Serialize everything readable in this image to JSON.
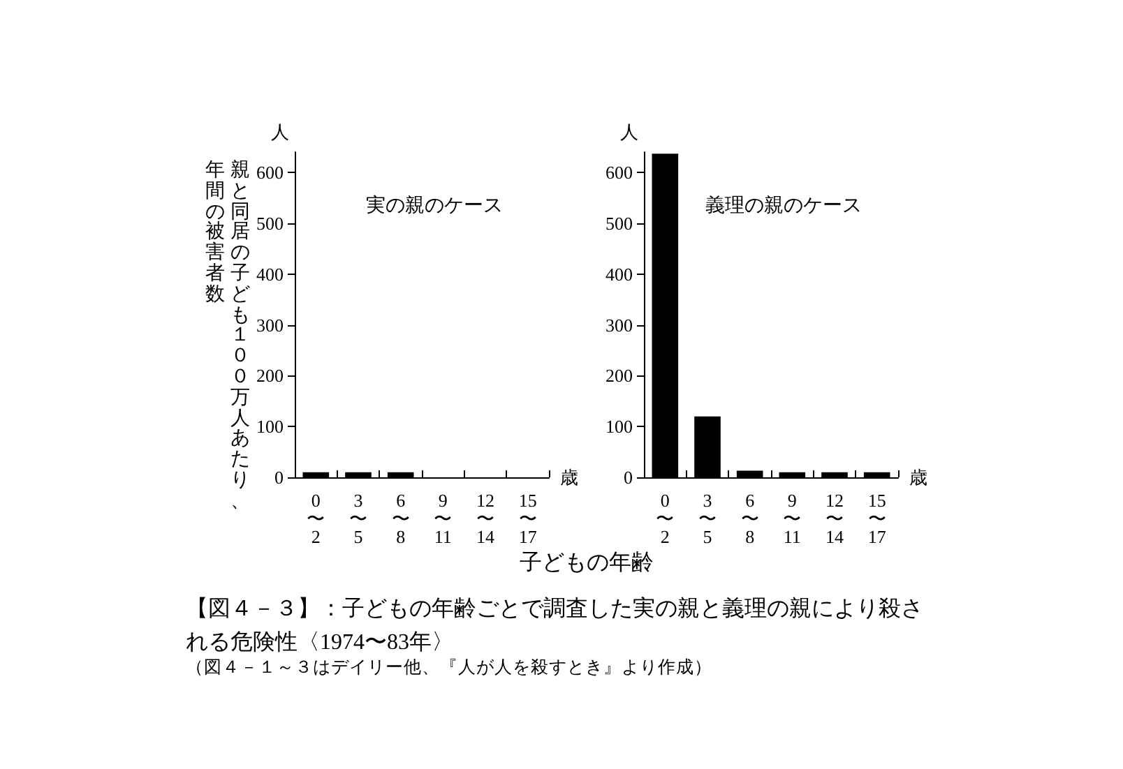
{
  "chart_data": [
    {
      "type": "bar",
      "title": "実の親のケース",
      "ylabel": "人",
      "xlabel": "歳",
      "categories": [
        "0\n〜\n2",
        "3\n〜\n5",
        "6\n〜\n8",
        "9\n〜\n11",
        "12\n〜\n14",
        "15\n〜\n17"
      ],
      "values": [
        10,
        10,
        10,
        0,
        0,
        0
      ],
      "color": "#000000",
      "ylim": [
        0,
        640
      ],
      "yticks": [
        0,
        100,
        200,
        300,
        400,
        500,
        600
      ],
      "grid": false,
      "annotations": [
        "親と同居の子ども１００万人あたり、年間の被害者数",
        "子どもの年齢"
      ]
    },
    {
      "type": "bar",
      "title": "義理の親のケース",
      "ylabel": "人",
      "xlabel": "歳",
      "categories": [
        "0\n〜\n2",
        "3\n〜\n5",
        "6\n〜\n8",
        "9\n〜\n11",
        "12\n〜\n14",
        "15\n〜\n17"
      ],
      "values": [
        637,
        120,
        13,
        10,
        10,
        10
      ],
      "color": "#000000",
      "ylim": [
        0,
        640
      ],
      "yticks": [
        0,
        100,
        200,
        300,
        400,
        500,
        600
      ],
      "grid": false,
      "annotations": [
        "【図４－３】：子どもの年齢ごとで調査した実の親と義理の親により殺される危険性〈1974〜83年〉",
        "（図４－１～３はデイリー他、『人が人を殺すとき』より作成）"
      ]
    }
  ]
}
